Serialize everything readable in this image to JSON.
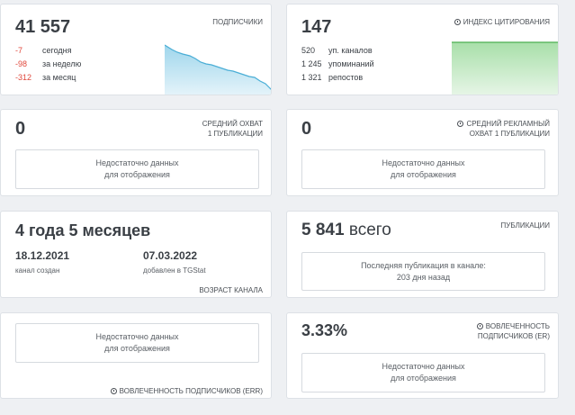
{
  "subscribers": {
    "value": "41 557",
    "caption": "ПОДПИСЧИКИ",
    "rows": [
      {
        "num": "-7",
        "label": "сегодня"
      },
      {
        "num": "-98",
        "label": "за неделю"
      },
      {
        "num": "-312",
        "label": "за месяц"
      }
    ]
  },
  "citation": {
    "value": "147",
    "caption": "ИНДЕКС ЦИТИРОВАНИЯ",
    "rows": [
      {
        "num": "520",
        "label": "уп. каналов"
      },
      {
        "num": "1 245",
        "label": "упоминаний"
      },
      {
        "num": "1 321",
        "label": "репостов"
      }
    ]
  },
  "avg_reach": {
    "value": "0",
    "caption_line1": "СРЕДНИЙ ОХВАТ",
    "caption_line2": "1 ПУБЛИКАЦИИ",
    "empty_line1": "Недостаточно данных",
    "empty_line2": "для отображения"
  },
  "ad_reach": {
    "value": "0",
    "caption_line1": "СРЕДНИЙ РЕКЛАМНЫЙ",
    "caption_line2": "ОХВАТ 1 ПУБЛИКАЦИИ",
    "empty_line1": "Недостаточно данных",
    "empty_line2": "для отображения"
  },
  "age": {
    "value": "4 года 5 месяцев",
    "created_date": "18.12.2021",
    "created_label": "канал создан",
    "added_date": "07.03.2022",
    "added_label": "добавлен в TGStat",
    "caption": "ВОЗРАСТ КАНАЛА"
  },
  "posts": {
    "value": "5 841",
    "unit": "всего",
    "caption": "ПУБЛИКАЦИИ",
    "last_line1": "Последняя публикация в канале:",
    "last_line2": "203 дня назад"
  },
  "err_left": {
    "empty_line1": "Недостаточно данных",
    "empty_line2": "для отображения",
    "caption": "ВОВЛЕЧЕННОСТЬ ПОДПИСЧИКОВ (ERR)"
  },
  "err_right": {
    "value": "3.33%",
    "caption_line1": "ВОВЛЕЧЕННОСТЬ",
    "caption_line2": "ПОДПИСЧИКОВ (ER)",
    "empty_line1": "Недостаточно данных",
    "empty_line2": "для отображения"
  },
  "colors": {
    "negative": "#e0483c",
    "blue_line": "#4aaed6",
    "green_line": "#4caf50"
  }
}
